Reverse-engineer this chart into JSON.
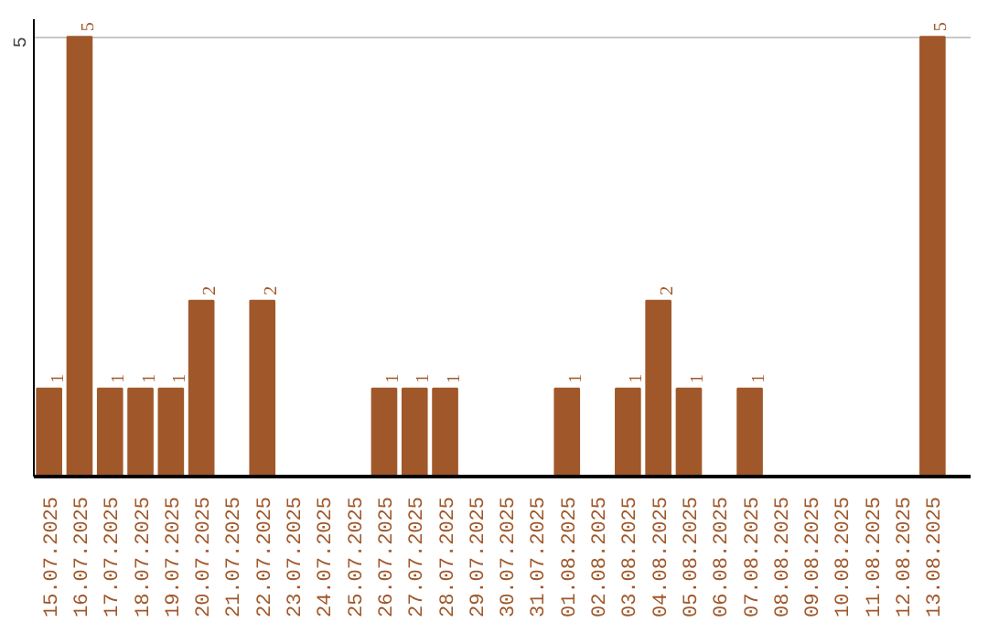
{
  "chart_data": {
    "type": "bar",
    "categories": [
      "15.07.2025",
      "16.07.2025",
      "17.07.2025",
      "18.07.2025",
      "19.07.2025",
      "20.07.2025",
      "21.07.2025",
      "22.07.2025",
      "23.07.2025",
      "24.07.2025",
      "25.07.2025",
      "26.07.2025",
      "27.07.2025",
      "28.07.2025",
      "29.07.2025",
      "30.07.2025",
      "31.07.2025",
      "01.08.2025",
      "02.08.2025",
      "03.08.2025",
      "04.08.2025",
      "05.08.2025",
      "06.08.2025",
      "07.08.2025",
      "08.08.2025",
      "09.08.2025",
      "10.08.2025",
      "11.08.2025",
      "12.08.2025",
      "13.08.2025"
    ],
    "values": [
      1,
      5,
      1,
      1,
      1,
      2,
      0,
      2,
      0,
      0,
      0,
      1,
      1,
      1,
      0,
      0,
      0,
      1,
      0,
      1,
      2,
      1,
      0,
      1,
      0,
      0,
      0,
      0,
      0,
      5
    ],
    "value_labels": [
      "1",
      "5",
      "1",
      "1",
      "1",
      "2",
      null,
      "2",
      null,
      null,
      null,
      "1",
      "1",
      "1",
      null,
      null,
      null,
      "1",
      null,
      "1",
      "2",
      "1",
      null,
      "1",
      null,
      null,
      null,
      null,
      null,
      "5"
    ],
    "color": "#a0582a",
    "ylim": [
      0,
      5.2
    ],
    "yticks": [
      5
    ],
    "grid": "y"
  }
}
